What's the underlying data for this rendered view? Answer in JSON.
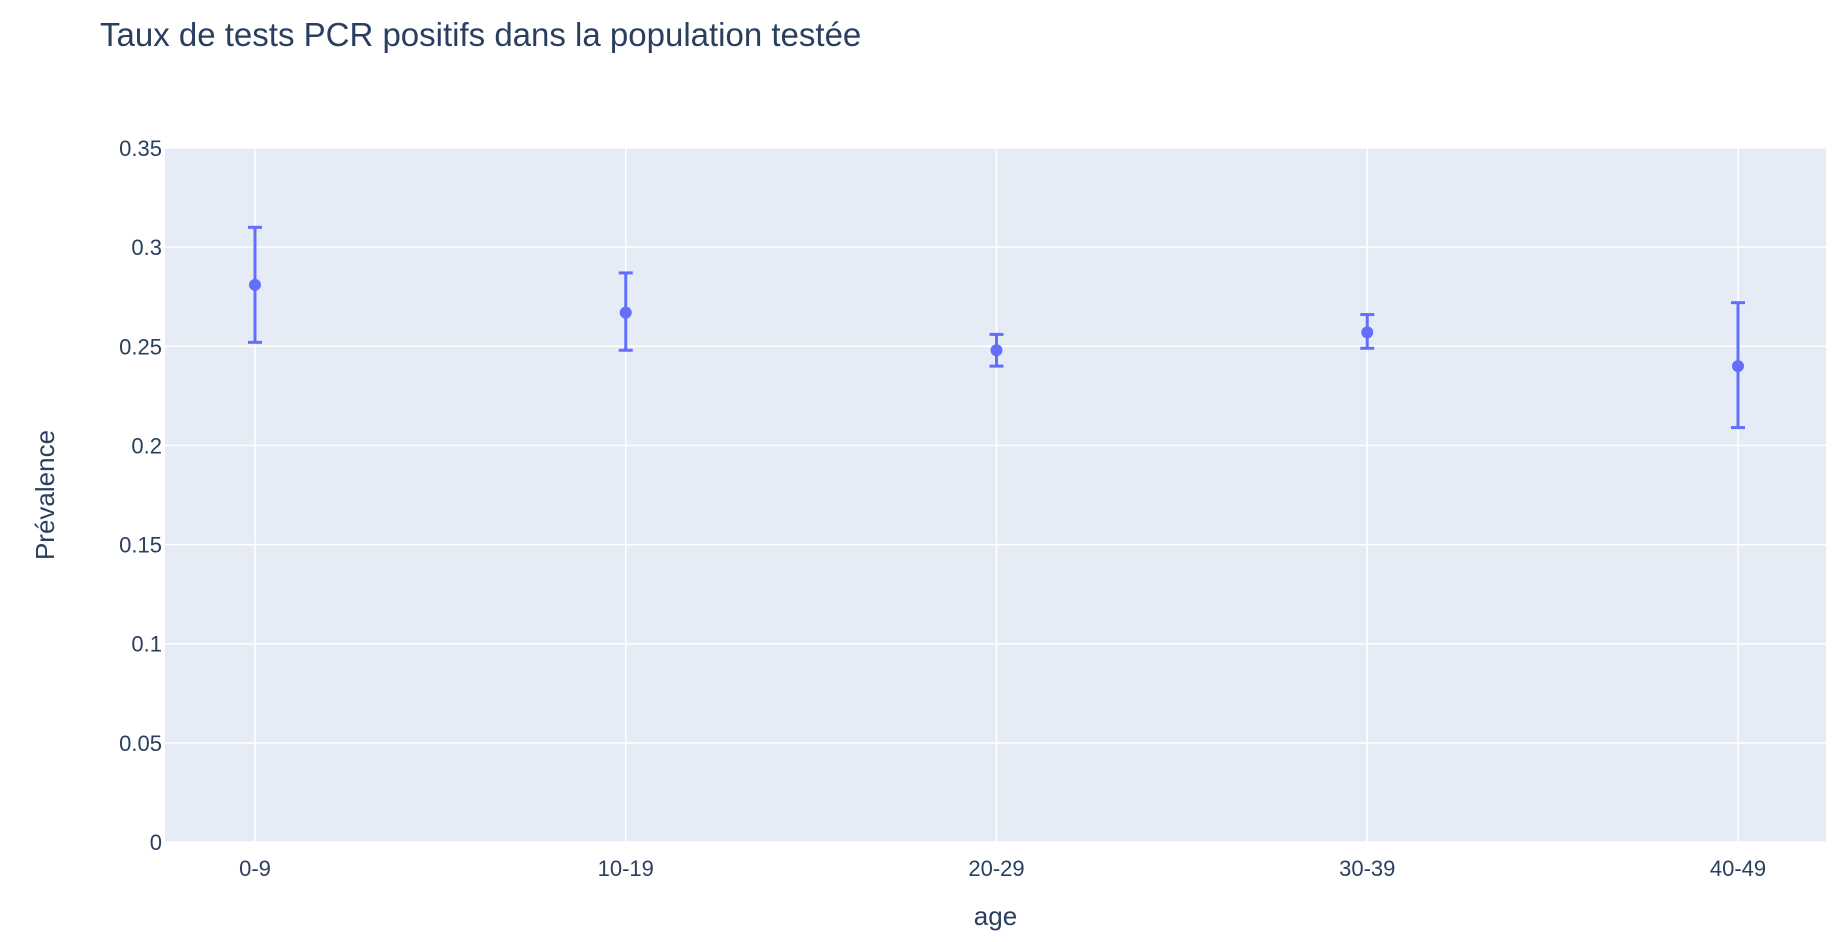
{
  "chart_data": {
    "type": "scatter",
    "title": "Taux de tests PCR positifs dans la population testée",
    "xlabel": "age",
    "ylabel": "Prévalence",
    "categories": [
      "0-9",
      "10-19",
      "20-29",
      "30-39",
      "40-49"
    ],
    "series": [
      {
        "values": [
          0.281,
          0.267,
          0.248,
          0.257,
          0.24
        ],
        "error_low": [
          0.252,
          0.248,
          0.24,
          0.249,
          0.209
        ],
        "error_high": [
          0.31,
          0.287,
          0.256,
          0.266,
          0.272
        ],
        "color": "#636efa"
      }
    ],
    "ylim": [
      0,
      0.35
    ],
    "yticks": [
      "0",
      "0.05",
      "0.1",
      "0.15",
      "0.2",
      "0.25",
      "0.3",
      "0.35"
    ],
    "grid": true
  },
  "colors": {
    "plot_background": "#e5ecf6",
    "grid": "#ffffff",
    "text": "#2a3f5f",
    "marker": "#636efa"
  }
}
